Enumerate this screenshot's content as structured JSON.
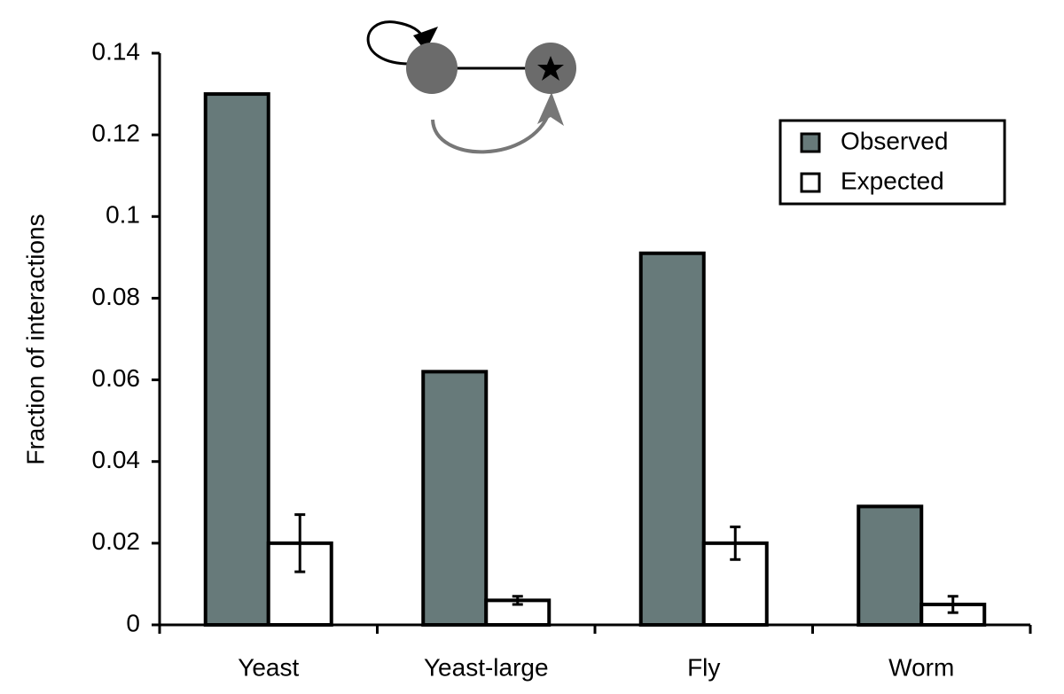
{
  "chart_data": {
    "type": "bar",
    "y_label": "Fraction of interactions",
    "categories": [
      "Yeast",
      "Yeast-large",
      "Fly",
      "Worm"
    ],
    "series": [
      {
        "name": "Observed",
        "color": "#677a7a",
        "values": [
          0.13,
          0.062,
          0.091,
          0.029
        ]
      },
      {
        "name": "Expected",
        "color": "#ffffff",
        "values": [
          0.02,
          0.006,
          0.02,
          0.005
        ],
        "errors": [
          0.007,
          0.001,
          0.004,
          0.002
        ]
      }
    ],
    "ylim": [
      0,
      0.14
    ],
    "yticks": [
      0,
      0.02,
      0.04,
      0.06,
      0.08,
      0.1,
      0.12,
      0.14
    ],
    "legend": "upper right"
  }
}
